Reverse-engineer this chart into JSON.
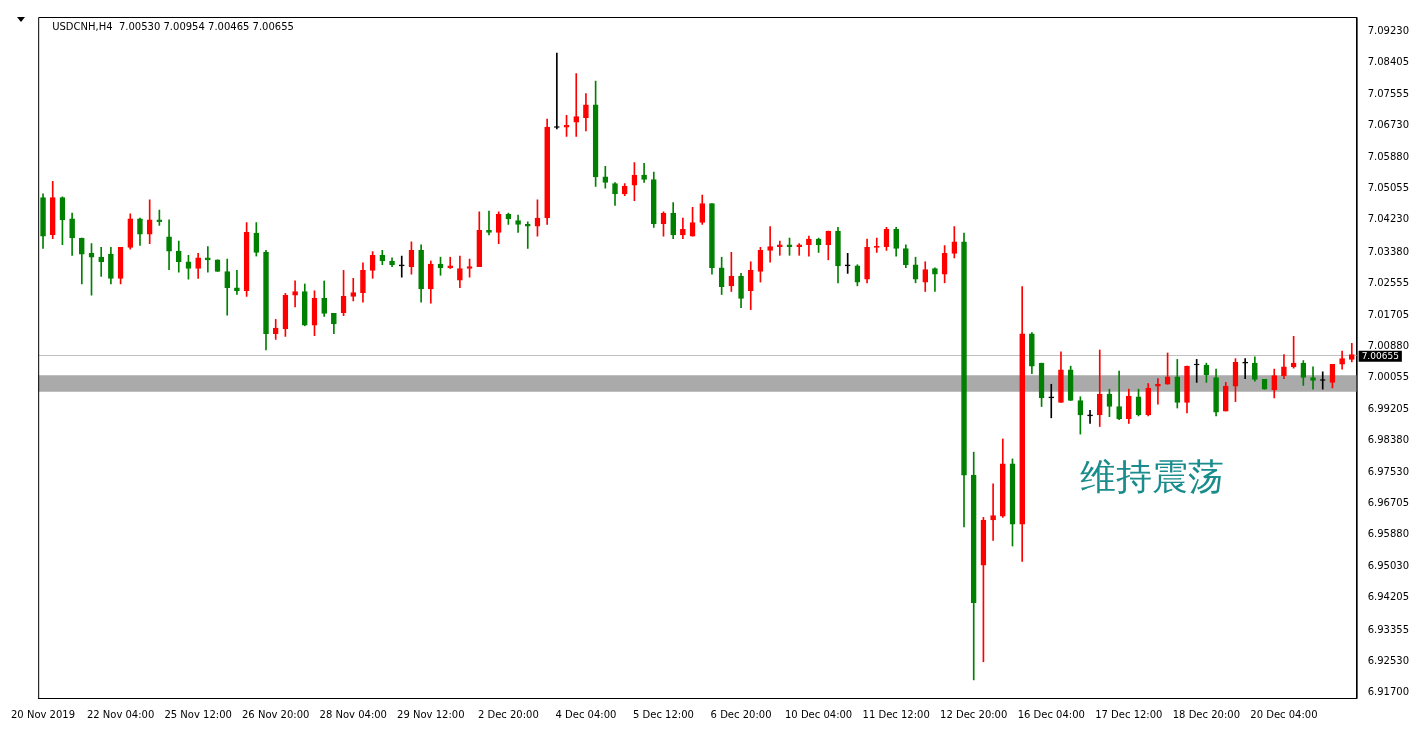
{
  "chart_data": {
    "type": "candlestick",
    "title": "USDCNH,H4  7.00530 7.00954 7.00465 7.00655",
    "categories": [
      "20 Nov 2019",
      null,
      null,
      null,
      null,
      null,
      null,
      null,
      "22 Nov 04:00",
      null,
      null,
      null,
      null,
      null,
      null,
      null,
      "25 Nov 12:00",
      null,
      null,
      null,
      null,
      null,
      null,
      null,
      "26 Nov 20:00",
      null,
      null,
      null,
      null,
      null,
      null,
      null,
      "28 Nov 04:00",
      null,
      null,
      null,
      null,
      null,
      null,
      null,
      "29 Nov 12:00",
      null,
      null,
      null,
      null,
      null,
      null,
      null,
      "2 Dec 20:00",
      null,
      null,
      null,
      null,
      null,
      null,
      null,
      "4 Dec 04:00",
      null,
      null,
      null,
      null,
      null,
      null,
      null,
      "5 Dec 12:00",
      null,
      null,
      null,
      null,
      null,
      null,
      null,
      "6 Dec 20:00",
      null,
      null,
      null,
      null,
      null,
      null,
      null,
      "10 Dec 04:00",
      null,
      null,
      null,
      null,
      null,
      null,
      null,
      "11 Dec 12:00",
      null,
      null,
      null,
      null,
      null,
      null,
      null,
      "12 Dec 20:00",
      null,
      null,
      null,
      null,
      null,
      null,
      null,
      "16 Dec 04:00",
      null,
      null,
      null,
      null,
      null,
      null,
      null,
      "17 Dec 12:00",
      null,
      null,
      null,
      null,
      null,
      null,
      null,
      "18 Dec 20:00",
      null,
      null,
      null,
      null,
      null,
      null,
      null,
      "20 Dec 04:00",
      null,
      null,
      null,
      null,
      null,
      null,
      null
    ],
    "ohlc": [
      [
        7.0482,
        7.0492,
        7.0347,
        7.038
      ],
      [
        7.0383,
        7.0525,
        7.0373,
        7.0482
      ],
      [
        7.0482,
        7.0484,
        7.0357,
        7.0423
      ],
      [
        7.0426,
        7.0441,
        7.0329,
        7.0375
      ],
      [
        7.0375,
        7.0375,
        7.0253,
        7.0332
      ],
      [
        7.0334,
        7.036,
        7.0223,
        7.0324
      ],
      [
        7.0324,
        7.035,
        7.0273,
        7.0312
      ],
      [
        7.0332,
        7.035,
        7.0253,
        7.0268
      ],
      [
        7.0268,
        7.035,
        7.0253,
        7.035
      ],
      [
        7.035,
        7.0439,
        7.0345,
        7.0426
      ],
      [
        7.0426,
        7.0428,
        7.0355,
        7.0385
      ],
      [
        7.0385,
        7.0476,
        7.036,
        7.0423
      ],
      [
        7.0423,
        7.0449,
        7.0408,
        7.0418
      ],
      [
        7.0378,
        7.0423,
        7.0291,
        7.034
      ],
      [
        7.034,
        7.0367,
        7.0284,
        7.0312
      ],
      [
        7.0312,
        7.0329,
        7.0266,
        7.0294
      ],
      [
        7.0294,
        7.0334,
        7.0268,
        7.0322
      ],
      [
        7.0322,
        7.0352,
        7.0284,
        7.0317
      ],
      [
        7.0317,
        7.0317,
        7.0286,
        7.0286
      ],
      [
        7.0286,
        7.0319,
        7.017,
        7.0243
      ],
      [
        7.0243,
        7.0289,
        7.0225,
        7.0235
      ],
      [
        7.0235,
        7.0416,
        7.022,
        7.039
      ],
      [
        7.0388,
        7.0416,
        7.0327,
        7.0337
      ],
      [
        7.0337,
        7.0342,
        7.0078,
        7.0121
      ],
      [
        7.0121,
        7.0159,
        7.0106,
        7.0136
      ],
      [
        7.0134,
        7.0228,
        7.0114,
        7.0223
      ],
      [
        7.0223,
        7.0261,
        7.0192,
        7.0233
      ],
      [
        7.0233,
        7.0253,
        7.0142,
        7.0144
      ],
      [
        7.0144,
        7.0235,
        7.0116,
        7.0215
      ],
      [
        7.0215,
        7.0261,
        7.0167,
        7.0175
      ],
      [
        7.0175,
        7.0175,
        7.0121,
        7.0147
      ],
      [
        7.0177,
        7.0289,
        7.0169,
        7.022
      ],
      [
        7.022,
        7.0268,
        7.0208,
        7.023
      ],
      [
        7.023,
        7.0309,
        7.0205,
        7.0289
      ],
      [
        7.0289,
        7.0339,
        7.0268,
        7.0329
      ],
      [
        7.0329,
        7.0342,
        7.0304,
        7.0314
      ],
      [
        7.0314,
        7.0322,
        7.0299,
        7.0304
      ],
      [
        7.0301,
        7.0327,
        7.0271,
        7.0301
      ],
      [
        7.0299,
        7.0365,
        7.0279,
        7.0342
      ],
      [
        7.0342,
        7.0357,
        7.0205,
        7.024
      ],
      [
        7.024,
        7.0314,
        7.0202,
        7.0306
      ],
      [
        7.0306,
        7.0324,
        7.0276,
        7.0296
      ],
      [
        7.0296,
        7.0324,
        7.0294,
        7.0301
      ],
      [
        7.0263,
        7.0327,
        7.0243,
        7.0294
      ],
      [
        7.0294,
        7.0319,
        7.0271,
        7.0299
      ],
      [
        7.0299,
        7.0444,
        7.0299,
        7.0395
      ],
      [
        7.0395,
        7.0446,
        7.0383,
        7.039
      ],
      [
        7.039,
        7.0444,
        7.036,
        7.0438
      ],
      [
        7.0438,
        7.0441,
        7.0411,
        7.0426
      ],
      [
        7.0421,
        7.0436,
        7.039,
        7.0411
      ],
      [
        7.0411,
        7.0418,
        7.0347,
        7.0406
      ],
      [
        7.0406,
        7.0476,
        7.038,
        7.0428
      ],
      [
        7.0428,
        7.069,
        7.0411,
        7.0669
      ],
      [
        7.0668,
        7.0865,
        7.0664,
        7.0668
      ],
      [
        7.0669,
        7.07,
        7.0644,
        7.0674
      ],
      [
        7.0682,
        7.0811,
        7.0644,
        7.0697
      ],
      [
        7.0694,
        7.0758,
        7.0659,
        7.0728
      ],
      [
        7.0728,
        7.0791,
        7.0512,
        7.0537
      ],
      [
        7.0537,
        7.0565,
        7.0507,
        7.0522
      ],
      [
        7.0519,
        7.0522,
        7.0461,
        7.0492
      ],
      [
        7.0492,
        7.0519,
        7.0487,
        7.0512
      ],
      [
        7.0515,
        7.0575,
        7.0474,
        7.0542
      ],
      [
        7.0542,
        7.0573,
        7.0522,
        7.053
      ],
      [
        7.053,
        7.055,
        7.0403,
        7.0413
      ],
      [
        7.0413,
        7.0444,
        7.038,
        7.0441
      ],
      [
        7.0441,
        7.0469,
        7.0373,
        7.0383
      ],
      [
        7.0383,
        7.0428,
        7.0373,
        7.0398
      ],
      [
        7.038,
        7.0456,
        7.038,
        7.0416
      ],
      [
        7.0416,
        7.0489,
        7.0411,
        7.0466
      ],
      [
        7.0466,
        7.0466,
        7.0279,
        7.0296
      ],
      [
        7.0296,
        7.0324,
        7.0225,
        7.0246
      ],
      [
        7.0248,
        7.0337,
        7.0233,
        7.0274
      ],
      [
        7.0274,
        7.0281,
        7.019,
        7.0215
      ],
      [
        7.0235,
        7.0312,
        7.0185,
        7.0289
      ],
      [
        7.0286,
        7.035,
        7.0258,
        7.0342
      ],
      [
        7.0342,
        7.0405,
        7.0311,
        7.0352
      ],
      [
        7.0352,
        7.0367,
        7.0329,
        7.0357
      ],
      [
        7.0357,
        7.0375,
        7.0329,
        7.0352
      ],
      [
        7.0352,
        7.036,
        7.0329,
        7.0357
      ],
      [
        7.0357,
        7.038,
        7.0327,
        7.0372
      ],
      [
        7.0372,
        7.0375,
        7.0337,
        7.0357
      ],
      [
        7.0357,
        7.0393,
        7.0317,
        7.0393
      ],
      [
        7.0393,
        7.0403,
        7.0256,
        7.0301
      ],
      [
        7.0301,
        7.0334,
        7.0281,
        7.0301
      ],
      [
        7.0301,
        7.0304,
        7.0248,
        7.0258
      ],
      [
        7.0266,
        7.0372,
        7.0256,
        7.035
      ],
      [
        7.035,
        7.0375,
        7.0337,
        7.0352
      ],
      [
        7.0352,
        7.0403,
        7.0342,
        7.0398
      ],
      [
        7.0398,
        7.0403,
        7.0327,
        7.0347
      ],
      [
        7.0347,
        7.0357,
        7.0296,
        7.0304
      ],
      [
        7.0304,
        7.0324,
        7.0256,
        7.0266
      ],
      [
        7.0258,
        7.0312,
        7.0233,
        7.0291
      ],
      [
        7.0294,
        7.0296,
        7.0233,
        7.0279
      ],
      [
        7.0279,
        7.0355,
        7.0256,
        7.0334
      ],
      [
        7.0334,
        7.0405,
        7.0322,
        7.0365
      ],
      [
        7.0365,
        7.0388,
        6.9609,
        6.9746
      ],
      [
        6.9746,
        6.9807,
        6.9203,
        6.9408
      ],
      [
        6.9507,
        6.9634,
        6.9251,
        6.9627
      ],
      [
        6.9627,
        6.9723,
        6.9573,
        6.9639
      ],
      [
        6.9637,
        6.9842,
        6.9634,
        6.9776
      ],
      [
        6.9776,
        6.9789,
        6.9558,
        6.9616
      ],
      [
        6.9616,
        7.0246,
        6.9517,
        7.0121
      ],
      [
        7.0121,
        7.0124,
        7.0015,
        7.0035
      ],
      [
        7.0043,
        7.0043,
        6.9928,
        6.9951
      ],
      [
        6.9951,
        6.9987,
        6.9898,
        6.9951
      ],
      [
        6.9939,
        7.0073,
        6.9939,
        7.0025
      ],
      [
        7.0025,
        7.0035,
        6.9944,
        6.9944
      ],
      [
        6.9944,
        6.9954,
        6.9855,
        6.9906
      ],
      [
        6.9903,
        6.9918,
        6.9883,
        6.9903
      ],
      [
        6.9906,
        7.0078,
        6.9875,
        6.9961
      ],
      [
        6.9961,
        6.9974,
        6.9901,
        6.9928
      ],
      [
        6.9928,
        7.0022,
        6.9893,
        6.9896
      ],
      [
        6.9896,
        6.9974,
        6.9883,
        6.9956
      ],
      [
        6.9954,
        6.9974,
        6.9903,
        6.9906
      ],
      [
        6.9906,
        6.9989,
        6.9903,
        6.9977
      ],
      [
        6.9982,
        7.0002,
        6.9934,
        6.9987
      ],
      [
        6.9987,
        7.007,
        6.9987,
        7.0007
      ],
      [
        7.0007,
        7.0053,
        6.9924,
        6.9939
      ],
      [
        6.9939,
        7.0035,
        6.9911,
        7.0035
      ],
      [
        7.0038,
        7.0053,
        6.9992,
        7.0038
      ],
      [
        7.0038,
        7.0043,
        6.9992,
        7.0012
      ],
      [
        7.0005,
        7.0027,
        6.9903,
        6.9913
      ],
      [
        6.9916,
        6.9992,
        6.9916,
        6.9982
      ],
      [
        6.9982,
        7.0055,
        6.9941,
        7.0045
      ],
      [
        7.0043,
        7.0055,
        7.0002,
        7.0043
      ],
      [
        7.0043,
        7.006,
        6.9995,
        7.0
      ],
      [
        7.0,
        7.0,
        6.9974,
        6.9974
      ],
      [
        6.9972,
        7.0027,
        6.9951,
        7.001
      ],
      [
        7.001,
        7.0066,
        7.0002,
        7.0033
      ],
      [
        7.0033,
        7.0114,
        7.003,
        7.0043
      ],
      [
        7.0043,
        7.005,
        6.9984,
        7.0005
      ],
      [
        7.0005,
        7.0033,
        6.9974,
        6.9997
      ],
      [
        6.9997,
        7.002,
        6.9974,
        6.9997
      ],
      [
        6.9992,
        7.004,
        6.9977,
        7.004
      ],
      [
        7.004,
        7.0075,
        7.0027,
        7.0055
      ],
      [
        7.0053,
        7.00954,
        7.00465,
        7.00655
      ]
    ],
    "colors": [
      "#008000",
      "#ff0000",
      "#008000",
      "#008000",
      "#008000",
      "#008000",
      "#008000",
      "#008000",
      "#ff0000",
      "#ff0000",
      "#008000",
      "#ff0000",
      "#008000",
      "#008000",
      "#008000",
      "#008000",
      "#ff0000",
      "#008000",
      "#008000",
      "#008000",
      "#008000",
      "#ff0000",
      "#008000",
      "#008000",
      "#ff0000",
      "#ff0000",
      "#ff0000",
      "#008000",
      "#ff0000",
      "#008000",
      "#008000",
      "#ff0000",
      "#ff0000",
      "#ff0000",
      "#ff0000",
      "#008000",
      "#008000",
      "#000000",
      "#ff0000",
      "#008000",
      "#ff0000",
      "#008000",
      "#ff0000",
      "#ff0000",
      "#ff0000",
      "#ff0000",
      "#008000",
      "#ff0000",
      "#008000",
      "#008000",
      "#008000",
      "#ff0000",
      "#ff0000",
      "#000000",
      "#ff0000",
      "#ff0000",
      "#ff0000",
      "#008000",
      "#008000",
      "#008000",
      "#ff0000",
      "#ff0000",
      "#008000",
      "#008000",
      "#ff0000",
      "#008000",
      "#ff0000",
      "#ff0000",
      "#ff0000",
      "#008000",
      "#008000",
      "#ff0000",
      "#008000",
      "#ff0000",
      "#ff0000",
      "#ff0000",
      "#ff0000",
      "#008000",
      "#ff0000",
      "#ff0000",
      "#008000",
      "#ff0000",
      "#008000",
      "#000000",
      "#008000",
      "#ff0000",
      "#ff0000",
      "#ff0000",
      "#008000",
      "#008000",
      "#008000",
      "#ff0000",
      "#008000",
      "#ff0000",
      "#ff0000",
      "#008000",
      "#008000",
      "#ff0000",
      "#ff0000",
      "#ff0000",
      "#008000",
      "#ff0000",
      "#008000",
      "#008000",
      "#000000",
      "#ff0000",
      "#008000",
      "#008000",
      "#000000",
      "#ff0000",
      "#008000",
      "#008000",
      "#ff0000",
      "#008000",
      "#ff0000",
      "#ff0000",
      "#ff0000",
      "#008000",
      "#ff0000",
      "#000000",
      "#008000",
      "#008000",
      "#ff0000",
      "#ff0000",
      "#000000",
      "#008000",
      "#008000",
      "#ff0000",
      "#ff0000",
      "#ff0000",
      "#008000",
      "#008000",
      "#000000",
      "#ff0000",
      "#ff0000",
      "#ff0000"
    ],
    "ylim": [
      6.9155,
      7.0961
    ],
    "yticks": [
      {
        "value": 7.0923,
        "label": "7.09230"
      },
      {
        "value": 7.08405,
        "label": "7.08405"
      },
      {
        "value": 7.07555,
        "label": "7.07555"
      },
      {
        "value": 7.0673,
        "label": "7.06730"
      },
      {
        "value": 7.0588,
        "label": "7.05880"
      },
      {
        "value": 7.05055,
        "label": "7.05055"
      },
      {
        "value": 7.0423,
        "label": "7.04230"
      },
      {
        "value": 7.0338,
        "label": "7.03380"
      },
      {
        "value": 7.02555,
        "label": "7.02555"
      },
      {
        "value": 7.01705,
        "label": "7.01705"
      },
      {
        "value": 7.0088,
        "label": "7.00880"
      },
      {
        "value": 7.00055,
        "label": "7.00055"
      },
      {
        "value": 6.99205,
        "label": "6.99205"
      },
      {
        "value": 6.9838,
        "label": "6.98380"
      },
      {
        "value": 6.9753,
        "label": "6.97530"
      },
      {
        "value": 6.96705,
        "label": "6.96705"
      },
      {
        "value": 6.9588,
        "label": "6.95880"
      },
      {
        "value": 6.9503,
        "label": "6.95030"
      },
      {
        "value": 6.94205,
        "label": "6.94205"
      },
      {
        "value": 6.93355,
        "label": "6.93355"
      },
      {
        "value": 6.9253,
        "label": "6.92530"
      },
      {
        "value": 6.917,
        "label": "6.91700"
      }
    ],
    "ref_lines": [
      {
        "axis": "y",
        "value": 7.00655,
        "label": "7.00655",
        "color": "#c0c0c0"
      }
    ],
    "bands": [
      {
        "axis": "y",
        "from": 6.9967,
        "to": 7.0011,
        "color": "#aaaaaa"
      }
    ],
    "annotations": [
      "维持震荡"
    ],
    "legend": false
  }
}
